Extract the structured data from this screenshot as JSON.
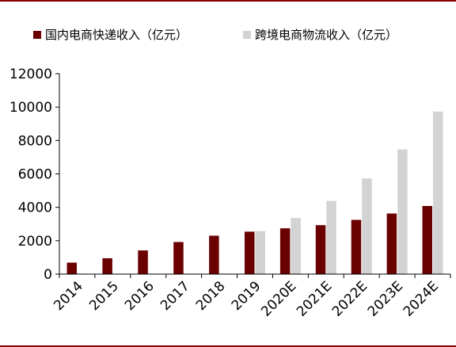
{
  "chart_data": {
    "type": "bar",
    "categories": [
      "2014",
      "2015",
      "2016",
      "2017",
      "2018",
      "2019",
      "2020E",
      "2021E",
      "2022E",
      "2023E",
      "2024E"
    ],
    "series": [
      {
        "name": "国内电商快递收入（亿元）",
        "color": "#6b0000",
        "values": [
          690,
          950,
          1420,
          1920,
          2300,
          2540,
          2740,
          2930,
          3250,
          3630,
          4080
        ]
      },
      {
        "name": "跨境电商物流收入（亿元）",
        "color": "#d3d3d3",
        "values": [
          null,
          null,
          null,
          null,
          null,
          2580,
          3360,
          4380,
          5730,
          7470,
          9730
        ]
      }
    ],
    "yticks": [
      "0",
      "2000",
      "4000",
      "6000",
      "8000",
      "10000",
      "12000"
    ],
    "ylim": [
      0,
      12000
    ],
    "grid": false,
    "legend_position": "top",
    "frame_color": "#8b0000"
  }
}
